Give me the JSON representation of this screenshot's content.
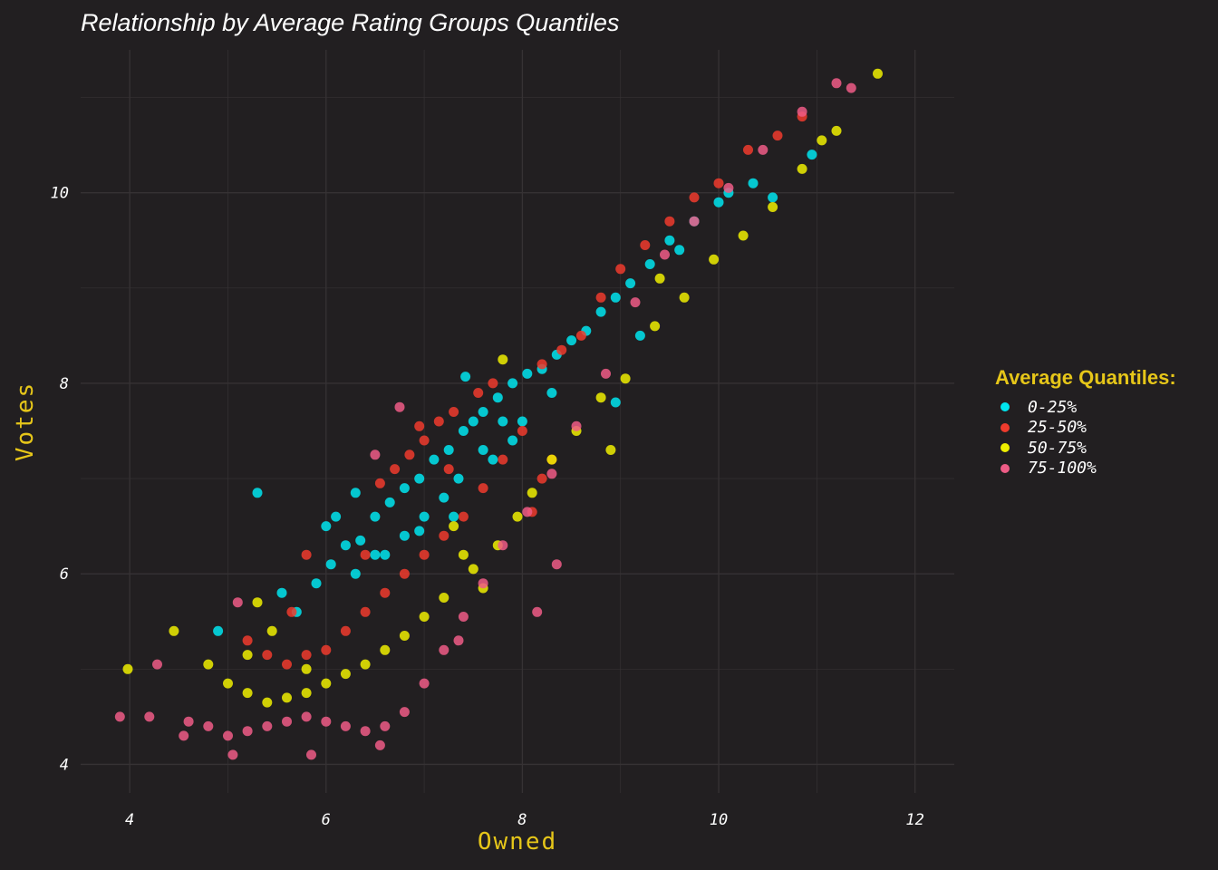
{
  "chart_data": {
    "type": "scatter",
    "title": "Relationship by Average Rating Groups Quantiles",
    "xlabel": "Owned",
    "ylabel": "Votes",
    "xlim": [
      3.5,
      12.4
    ],
    "ylim": [
      3.7,
      11.5
    ],
    "x_ticks": [
      "4",
      "6",
      "8",
      "10",
      "12"
    ],
    "y_ticks": [
      "4",
      "6",
      "8",
      "10"
    ],
    "grid": true,
    "legend": {
      "title": "Average Quantiles:",
      "placement": "right",
      "entries": [
        "0-25%",
        "25-50%",
        "50-75%",
        "75-100%"
      ]
    },
    "colors": {
      "background": "#221f21",
      "grid": "#363234",
      "accent": "#e6c619",
      "q1": "#00e5ee",
      "q2": "#ee3b2d",
      "q3": "#eeee00",
      "q4": "#ee5c86"
    },
    "series": [
      {
        "name": "0-25%",
        "points": [
          [
            4.9,
            5.4
          ],
          [
            5.3,
            6.85
          ],
          [
            5.55,
            5.8
          ],
          [
            5.7,
            5.6
          ],
          [
            5.9,
            5.9
          ],
          [
            6.05,
            6.1
          ],
          [
            6.2,
            6.3
          ],
          [
            6.35,
            6.35
          ],
          [
            6.5,
            6.6
          ],
          [
            6.65,
            6.75
          ],
          [
            6.8,
            6.9
          ],
          [
            6.95,
            7.0
          ],
          [
            7.1,
            7.2
          ],
          [
            7.25,
            7.3
          ],
          [
            7.4,
            7.5
          ],
          [
            7.5,
            7.6
          ],
          [
            7.6,
            7.7
          ],
          [
            7.75,
            7.85
          ],
          [
            7.9,
            8.0
          ],
          [
            8.05,
            8.1
          ],
          [
            8.2,
            8.15
          ],
          [
            8.35,
            8.3
          ],
          [
            8.5,
            8.45
          ],
          [
            8.65,
            8.55
          ],
          [
            8.8,
            8.75
          ],
          [
            8.95,
            8.9
          ],
          [
            9.1,
            9.05
          ],
          [
            9.3,
            9.25
          ],
          [
            9.5,
            9.5
          ],
          [
            9.75,
            9.7
          ],
          [
            10.0,
            9.9
          ],
          [
            10.35,
            10.1
          ],
          [
            10.55,
            9.95
          ],
          [
            10.95,
            10.4
          ],
          [
            7.3,
            6.6
          ],
          [
            7.7,
            7.2
          ],
          [
            8.0,
            7.6
          ],
          [
            6.3,
            6.0
          ],
          [
            6.0,
            6.5
          ],
          [
            6.6,
            6.2
          ],
          [
            7.0,
            6.6
          ],
          [
            6.8,
            6.4
          ],
          [
            7.2,
            6.8
          ],
          [
            7.6,
            7.3
          ],
          [
            7.8,
            7.6
          ],
          [
            8.3,
            7.9
          ],
          [
            7.42,
            8.07
          ],
          [
            6.3,
            6.85
          ],
          [
            6.1,
            6.6
          ],
          [
            6.5,
            6.2
          ],
          [
            6.95,
            6.45
          ],
          [
            7.35,
            7.0
          ],
          [
            7.9,
            7.4
          ],
          [
            8.95,
            7.8
          ],
          [
            9.2,
            8.5
          ],
          [
            9.6,
            9.4
          ],
          [
            10.1,
            10.0
          ]
        ]
      },
      {
        "name": "25-50%",
        "points": [
          [
            5.2,
            5.3
          ],
          [
            5.4,
            5.15
          ],
          [
            5.6,
            5.05
          ],
          [
            5.8,
            5.15
          ],
          [
            6.0,
            5.2
          ],
          [
            6.2,
            5.4
          ],
          [
            6.4,
            5.6
          ],
          [
            6.6,
            5.8
          ],
          [
            6.8,
            6.0
          ],
          [
            7.0,
            6.2
          ],
          [
            7.2,
            6.4
          ],
          [
            7.4,
            6.6
          ],
          [
            7.6,
            6.9
          ],
          [
            7.8,
            7.2
          ],
          [
            8.0,
            7.5
          ],
          [
            7.7,
            8.0
          ],
          [
            7.55,
            7.9
          ],
          [
            7.3,
            7.7
          ],
          [
            7.15,
            7.6
          ],
          [
            7.0,
            7.4
          ],
          [
            6.85,
            7.25
          ],
          [
            6.7,
            7.1
          ],
          [
            6.55,
            6.95
          ],
          [
            8.2,
            8.2
          ],
          [
            8.4,
            8.35
          ],
          [
            8.6,
            8.5
          ],
          [
            8.8,
            8.9
          ],
          [
            9.0,
            9.2
          ],
          [
            9.25,
            9.45
          ],
          [
            9.5,
            9.7
          ],
          [
            9.75,
            9.95
          ],
          [
            10.0,
            10.1
          ],
          [
            10.3,
            10.45
          ],
          [
            10.6,
            10.6
          ],
          [
            10.85,
            10.8
          ],
          [
            6.95,
            7.55
          ],
          [
            7.25,
            7.1
          ],
          [
            8.1,
            6.65
          ],
          [
            5.65,
            5.6
          ],
          [
            5.8,
            6.2
          ],
          [
            6.4,
            6.2
          ],
          [
            8.2,
            7.0
          ],
          [
            8.3,
            7.2
          ]
        ]
      },
      {
        "name": "50-75%",
        "points": [
          [
            4.45,
            5.4
          ],
          [
            3.98,
            5.0
          ],
          [
            4.8,
            5.05
          ],
          [
            5.0,
            4.85
          ],
          [
            5.2,
            4.75
          ],
          [
            5.4,
            4.65
          ],
          [
            5.6,
            4.7
          ],
          [
            5.8,
            4.75
          ],
          [
            6.0,
            4.85
          ],
          [
            6.2,
            4.95
          ],
          [
            6.4,
            5.05
          ],
          [
            6.6,
            5.2
          ],
          [
            6.8,
            5.35
          ],
          [
            7.0,
            5.55
          ],
          [
            7.2,
            5.75
          ],
          [
            7.5,
            6.05
          ],
          [
            7.75,
            6.3
          ],
          [
            7.95,
            6.6
          ],
          [
            8.1,
            6.85
          ],
          [
            8.3,
            7.2
          ],
          [
            8.55,
            7.5
          ],
          [
            8.8,
            7.85
          ],
          [
            9.05,
            8.05
          ],
          [
            9.35,
            8.6
          ],
          [
            9.65,
            8.9
          ],
          [
            9.95,
            9.3
          ],
          [
            10.25,
            9.55
          ],
          [
            10.55,
            9.85
          ],
          [
            10.85,
            10.25
          ],
          [
            11.05,
            10.55
          ],
          [
            11.2,
            10.65
          ],
          [
            11.62,
            11.25
          ],
          [
            7.4,
            6.2
          ],
          [
            7.6,
            5.85
          ],
          [
            7.3,
            6.5
          ],
          [
            7.8,
            8.25
          ],
          [
            8.9,
            7.3
          ],
          [
            9.4,
            9.1
          ],
          [
            5.3,
            5.7
          ],
          [
            5.45,
            5.4
          ],
          [
            5.2,
            5.15
          ],
          [
            5.8,
            5.0
          ]
        ]
      },
      {
        "name": "75-100%",
        "points": [
          [
            3.9,
            4.5
          ],
          [
            4.2,
            4.5
          ],
          [
            4.28,
            5.05
          ],
          [
            4.55,
            4.3
          ],
          [
            4.6,
            4.45
          ],
          [
            4.8,
            4.4
          ],
          [
            5.0,
            4.3
          ],
          [
            5.2,
            4.35
          ],
          [
            5.4,
            4.4
          ],
          [
            5.6,
            4.45
          ],
          [
            5.8,
            4.5
          ],
          [
            6.0,
            4.45
          ],
          [
            6.2,
            4.4
          ],
          [
            6.4,
            4.35
          ],
          [
            6.6,
            4.4
          ],
          [
            6.8,
            4.55
          ],
          [
            7.0,
            4.85
          ],
          [
            7.2,
            5.2
          ],
          [
            7.4,
            5.55
          ],
          [
            7.6,
            5.9
          ],
          [
            7.8,
            6.3
          ],
          [
            8.05,
            6.65
          ],
          [
            8.3,
            7.05
          ],
          [
            8.55,
            7.55
          ],
          [
            8.85,
            8.1
          ],
          [
            9.15,
            8.85
          ],
          [
            9.45,
            9.35
          ],
          [
            9.75,
            9.7
          ],
          [
            10.1,
            10.05
          ],
          [
            10.45,
            10.45
          ],
          [
            10.85,
            10.85
          ],
          [
            11.2,
            11.15
          ],
          [
            11.35,
            11.1
          ],
          [
            5.05,
            4.1
          ],
          [
            5.85,
            4.1
          ],
          [
            6.55,
            4.2
          ],
          [
            5.1,
            5.7
          ],
          [
            6.5,
            7.25
          ],
          [
            6.75,
            7.75
          ],
          [
            7.35,
            5.3
          ],
          [
            8.35,
            6.1
          ],
          [
            8.15,
            5.6
          ]
        ]
      }
    ]
  }
}
